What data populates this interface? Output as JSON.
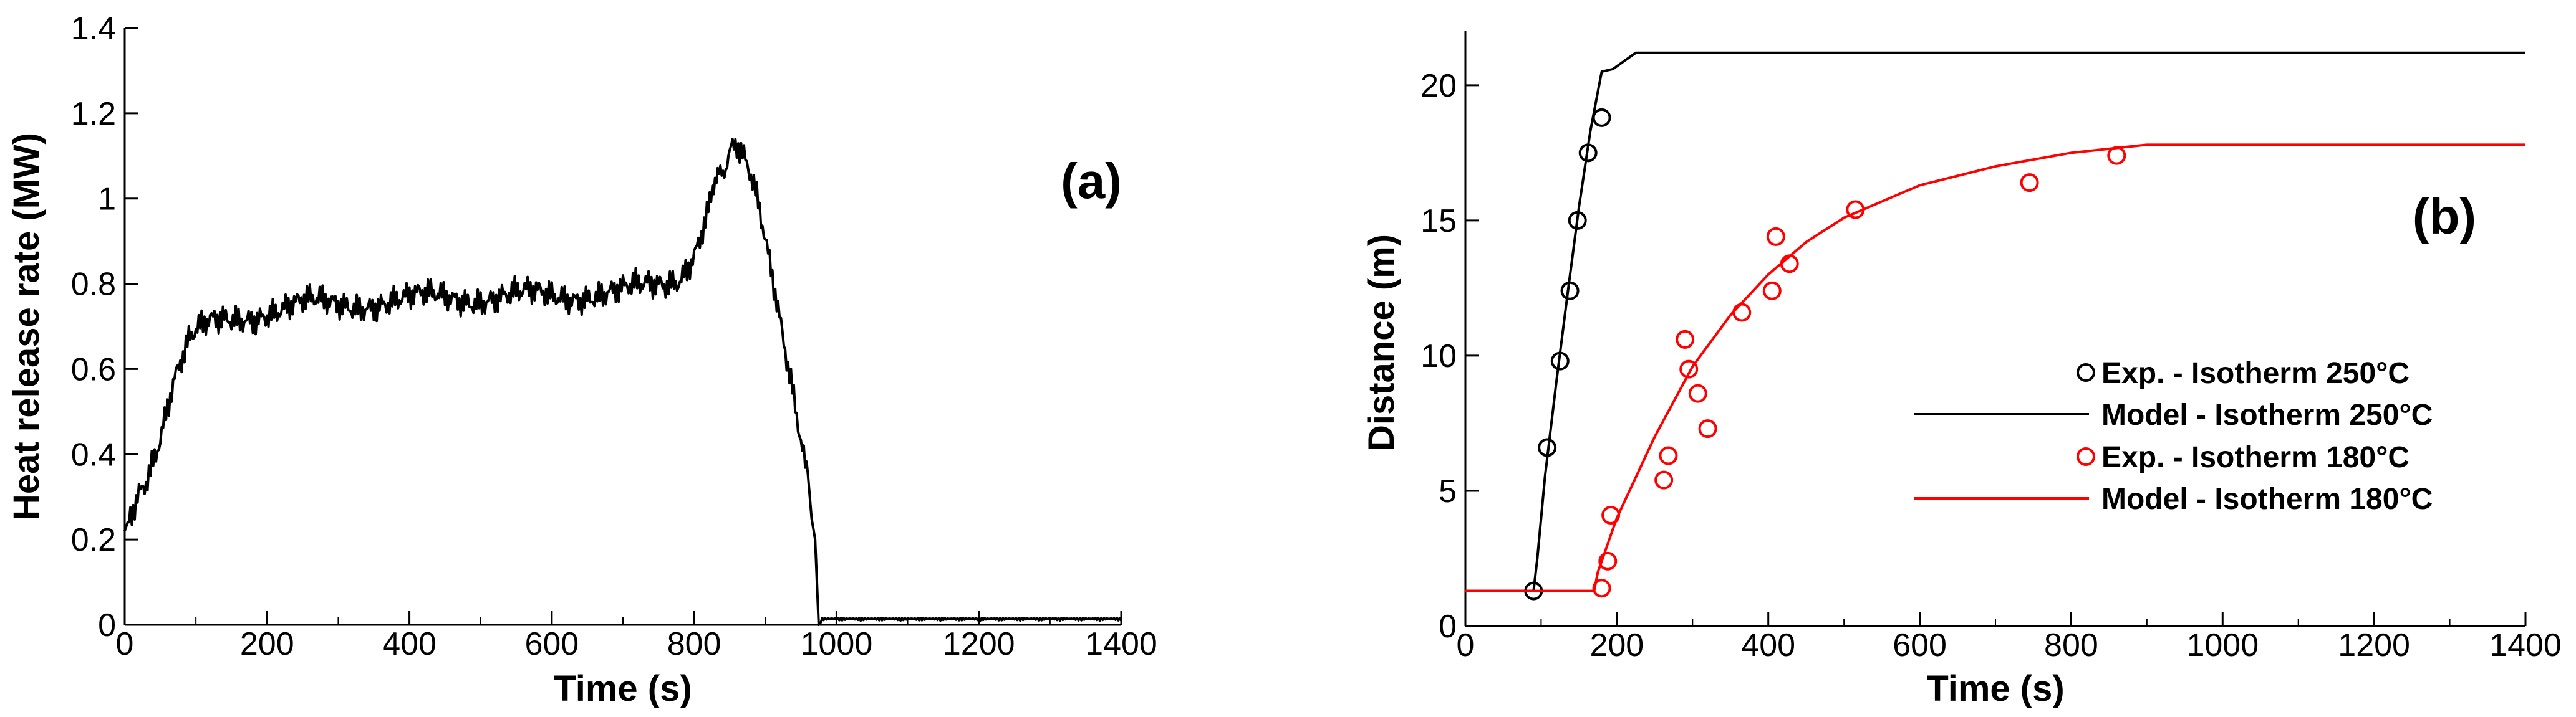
{
  "chart_data": [
    {
      "type": "line",
      "panel_label": "(a)",
      "xlabel": "Time (s)",
      "ylabel": "Heat release rate (MW)",
      "xlim": [
        0,
        1400
      ],
      "ylim": [
        0,
        1.4
      ],
      "xticks": [
        "0",
        "200",
        "400",
        "600",
        "800",
        "1000",
        "1200",
        "1400"
      ],
      "yticks": [
        "0",
        "0.2",
        "0.4",
        "0.6",
        "0.8",
        "1",
        "1.2",
        "1.4"
      ],
      "series": [
        {
          "name": "Heat release rate",
          "color": "#000000",
          "x": [
            0,
            10,
            20,
            30,
            40,
            50,
            60,
            70,
            80,
            90,
            100,
            110,
            120,
            140,
            160,
            180,
            200,
            250,
            300,
            350,
            400,
            450,
            500,
            550,
            600,
            650,
            700,
            740,
            760,
            780,
            800,
            820,
            835,
            850,
            860,
            870,
            880,
            890,
            900,
            910,
            920,
            930,
            940,
            950,
            960,
            965,
            970,
            975,
            980,
            1000,
            1200,
            1400
          ],
          "y": [
            0.22,
            0.27,
            0.32,
            0.35,
            0.4,
            0.45,
            0.52,
            0.58,
            0.62,
            0.66,
            0.68,
            0.69,
            0.7,
            0.71,
            0.72,
            0.73,
            0.74,
            0.75,
            0.75,
            0.76,
            0.76,
            0.77,
            0.77,
            0.77,
            0.77,
            0.78,
            0.78,
            0.79,
            0.8,
            0.82,
            0.88,
            0.98,
            1.06,
            1.1,
            1.11,
            1.08,
            1.04,
            0.98,
            0.9,
            0.82,
            0.73,
            0.64,
            0.55,
            0.45,
            0.35,
            0.25,
            0.2,
            0.0,
            0.01,
            0.01,
            0.01,
            0.01
          ]
        }
      ]
    },
    {
      "type": "line",
      "panel_label": "(b)",
      "xlabel": "Time (s)",
      "ylabel": "Distance (m)",
      "xlim": [
        0,
        1400
      ],
      "ylim": [
        0,
        22
      ],
      "xticks": [
        "0",
        "200",
        "400",
        "600",
        "800",
        "1000",
        "1200",
        "1400"
      ],
      "yticks": [
        "0",
        "5",
        "10",
        "15",
        "20"
      ],
      "legend_position": "right",
      "series": [
        {
          "name": "Exp. - Isotherm 250°C",
          "kind": "scatter",
          "color": "#000000",
          "x": [
            90,
            108,
            125,
            138,
            148,
            162,
            180
          ],
          "y": [
            1.3,
            6.6,
            9.8,
            12.4,
            15.0,
            17.5,
            18.8
          ]
        },
        {
          "name": "Model - Isotherm 250°C",
          "kind": "line",
          "color": "#000000",
          "x": [
            0,
            90,
            95,
            105,
            120,
            135,
            150,
            165,
            180,
            195,
            200,
            215,
            225,
            1400
          ],
          "y": [
            1.3,
            1.3,
            2.5,
            5.5,
            9.0,
            12.3,
            15.5,
            18.3,
            20.5,
            20.6,
            20.7,
            21.0,
            21.2,
            21.2
          ]
        },
        {
          "name": "Exp. - Isotherm 180°C",
          "kind": "scatter",
          "color": "#ff0000",
          "x": [
            180,
            188,
            192,
            262,
            268,
            290,
            295,
            307,
            320,
            365,
            405,
            410,
            428,
            515,
            745,
            860
          ],
          "y": [
            1.4,
            2.4,
            4.1,
            5.4,
            6.3,
            10.6,
            9.5,
            8.6,
            7.3,
            11.6,
            12.4,
            14.4,
            13.4,
            15.4,
            16.4,
            17.4
          ]
        },
        {
          "name": "Model - Isotherm 180°C",
          "kind": "line",
          "color": "#ff0000",
          "x": [
            0,
            170,
            175,
            200,
            250,
            300,
            350,
            400,
            450,
            500,
            600,
            700,
            800,
            900,
            920,
            1400
          ],
          "y": [
            1.3,
            1.3,
            2.0,
            4.0,
            7.0,
            9.6,
            11.5,
            13.0,
            14.2,
            15.1,
            16.3,
            17.0,
            17.5,
            17.8,
            17.8,
            17.8
          ]
        }
      ]
    }
  ]
}
